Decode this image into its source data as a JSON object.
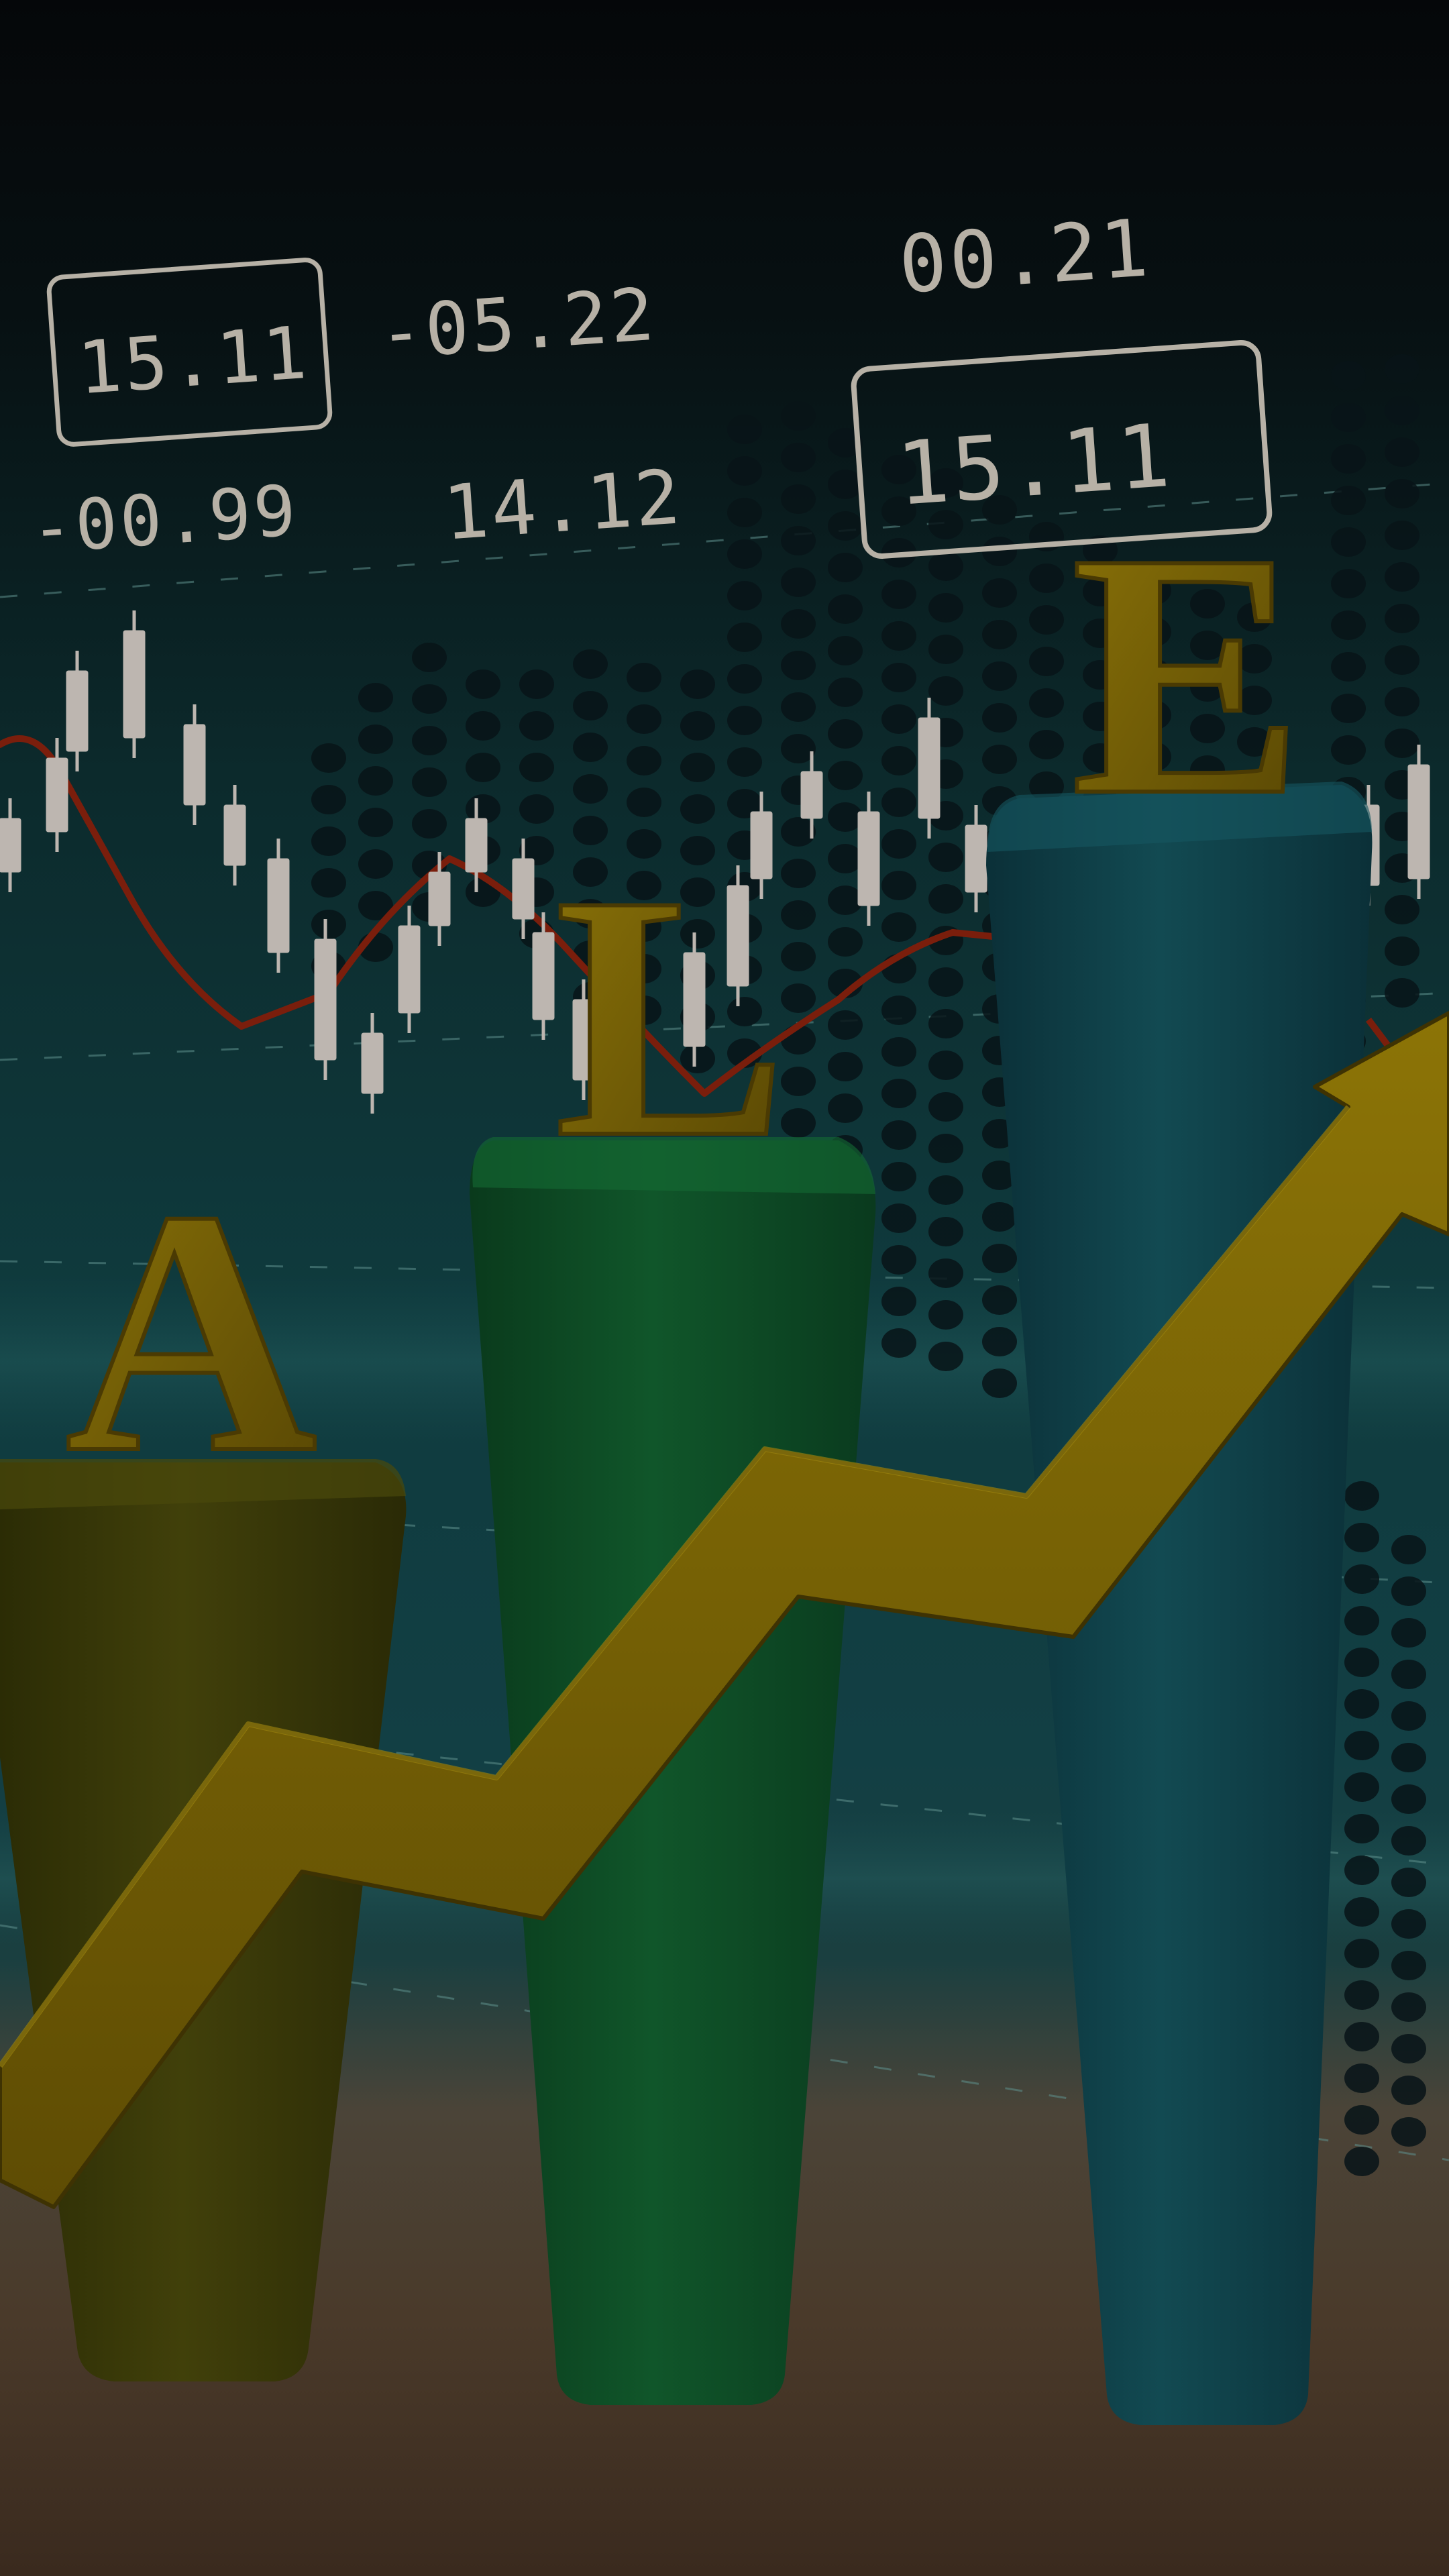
{
  "scene": {
    "tickers": {
      "t1": "15.11",
      "t2": "-05.22",
      "t3": "00.21",
      "t4": "15.11",
      "t5": "-00.99",
      "t6": "14.12"
    },
    "letters": {
      "a": "A",
      "l": "L",
      "e": "E"
    },
    "colors": {
      "background_top": "#050709",
      "background_mid": "#0f3a3d",
      "floor": "#4a3a2a",
      "pillar_a": "#3a3a08",
      "pillar_l": "#0c4a24",
      "pillar_e": "#0e3e46",
      "arrow": "#7a6505",
      "letters": "#6e5a06",
      "trend_line": "#7a1e0c",
      "candles": "#bdb6b0"
    },
    "icons": [
      "upward-trend-arrow",
      "candlestick-chart",
      "dot-matrix-bars"
    ]
  }
}
